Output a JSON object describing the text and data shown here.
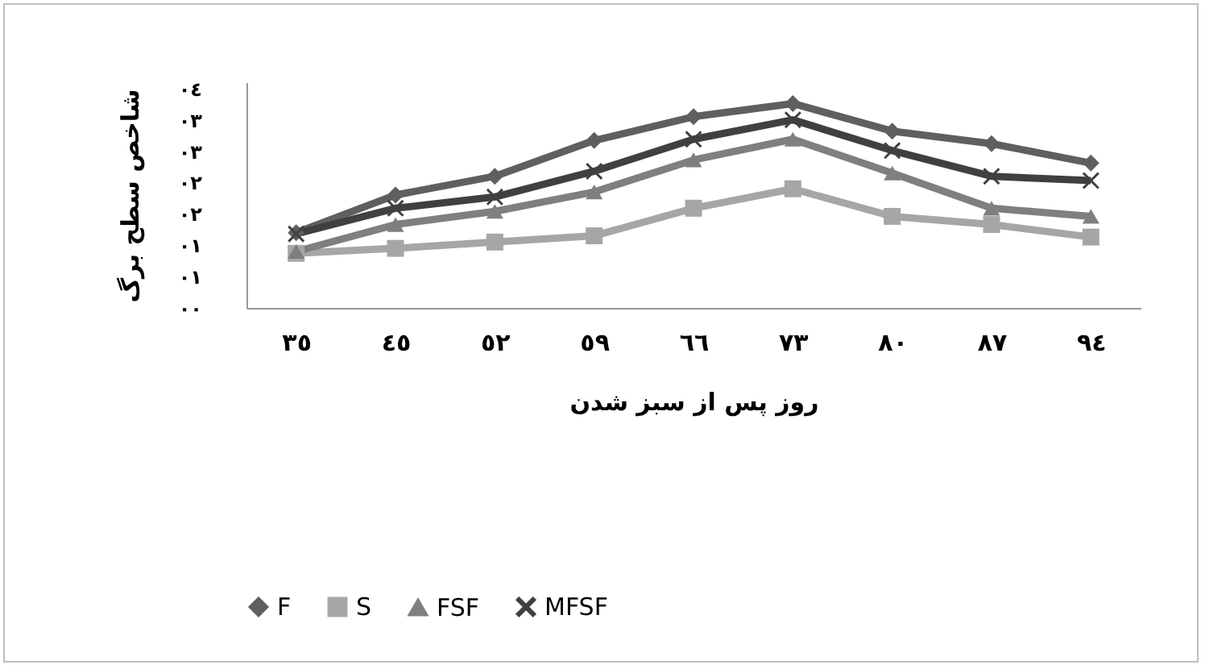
{
  "chart_data": {
    "type": "line",
    "xlabel": "روز پس از سبز شدن",
    "ylabel": "شاخص سطح برگ",
    "categories": [
      "٣٥",
      "٤٥",
      "٥٢",
      "٥٩",
      "٦٦",
      "٧٣",
      "٨٠",
      "٨٧",
      "٩٤"
    ],
    "ylim": [
      0,
      3.6
    ],
    "yticks": [
      {
        "value": 0,
        "label": "٠٠"
      },
      {
        "value": 0.5,
        "label": "٠١"
      },
      {
        "value": 1,
        "label": "٠١"
      },
      {
        "value": 1.5,
        "label": "٠٢"
      },
      {
        "value": 2,
        "label": "٠٢"
      },
      {
        "value": 2.5,
        "label": "٠٣"
      },
      {
        "value": 3,
        "label": "٠٣"
      },
      {
        "value": 3.5,
        "label": "٠٤"
      }
    ],
    "grid": false,
    "legend": "bottom",
    "series": [
      {
        "name": "F",
        "color": "#5f5f5f",
        "marker": "diamond",
        "values": [
          1.2,
          1.8,
          2.1,
          2.67,
          3.05,
          3.26,
          2.82,
          2.62,
          2.31
        ]
      },
      {
        "name": "S",
        "color": "#a6a6a6",
        "marker": "square",
        "values": [
          0.87,
          0.95,
          1.05,
          1.15,
          1.59,
          1.9,
          1.46,
          1.33,
          1.13
        ]
      },
      {
        "name": "FSF",
        "color": "#7f7f7f",
        "marker": "triangle",
        "values": [
          0.9,
          1.33,
          1.54,
          1.85,
          2.36,
          2.69,
          2.15,
          1.59,
          1.46
        ]
      },
      {
        "name": "MFSF",
        "color": "#404040",
        "marker": "cross",
        "values": [
          1.18,
          1.59,
          1.77,
          2.18,
          2.69,
          3.0,
          2.51,
          2.1,
          2.03
        ]
      }
    ]
  }
}
